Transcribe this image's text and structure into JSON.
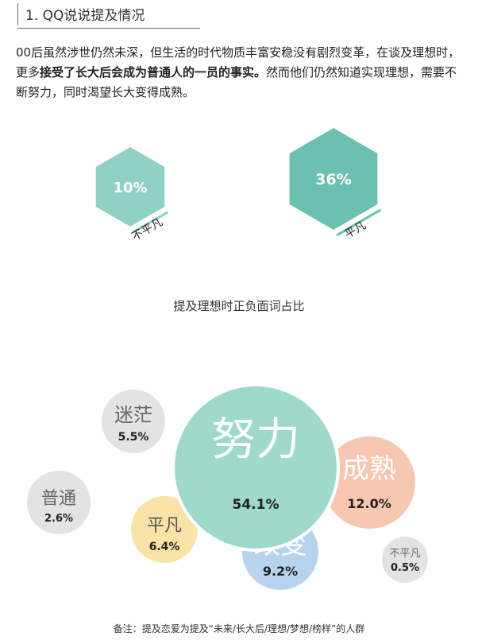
{
  "section": {
    "title": "1. QQ说说提及情况"
  },
  "intro": {
    "text_before": "00后虽然涉世仍然未深，但生活的时代物质丰富安稳没有剧烈变革，在谈及理想时，更多",
    "text_bold": "接受了长大后会成为普通人的一员的事实。",
    "text_after": "然而他们仍然知道实现理想，需要不断努力，同时渴望长大变得成熟。"
  },
  "hexagons": [
    {
      "label": "不平凡",
      "value_text": "10%",
      "value": 10,
      "color": "#8fd1c4"
    },
    {
      "label": "平凡",
      "value_text": "36%",
      "value": 36,
      "color": "#6bc0af"
    }
  ],
  "bubble_chart": {
    "title": "提及理想时正负面词占比"
  },
  "footnote": "备注：提及恋爱为提及“未来/长大后/理想/梦想/榜样”的人群",
  "chart_data": {
    "type": "bubble",
    "title": "提及理想时正负面词占比",
    "items": [
      {
        "label": "努力",
        "value": 54.1,
        "value_text": "54.1%",
        "color": "#9fd8cc"
      },
      {
        "label": "成熟",
        "value": 12.0,
        "value_text": "12.0%",
        "color": "#f7c7b1"
      },
      {
        "label": "改变",
        "value": 9.2,
        "value_text": "9.2%",
        "color": "#b8d3ee"
      },
      {
        "label": "平凡",
        "value": 6.4,
        "value_text": "6.4%",
        "color": "#f9e3a6"
      },
      {
        "label": "迷茫",
        "value": 5.5,
        "value_text": "5.5%",
        "color": "#e3e3e3"
      },
      {
        "label": "普通",
        "value": 2.6,
        "value_text": "2.6%",
        "color": "#e3e3e3"
      },
      {
        "label": "不平凡",
        "value": 0.5,
        "value_text": "0.5%",
        "color": "#e3e3e3"
      }
    ]
  }
}
